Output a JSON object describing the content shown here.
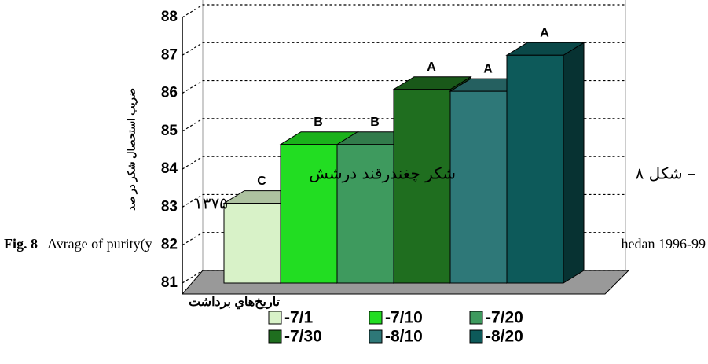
{
  "chart_data": {
    "type": "bar",
    "categories": [
      "-7/1",
      "-7/10",
      "-7/20",
      "-7/30",
      "-8/10",
      "-8/20"
    ],
    "values": [
      83.1,
      84.65,
      84.65,
      86.1,
      86.05,
      87.0
    ],
    "annotations": [
      "C",
      "B",
      "B",
      "A",
      "A",
      "A"
    ],
    "colors": [
      "#d8f2c8",
      "#22dd22",
      "#3e9a5e",
      "#1f6e1f",
      "#2e7878",
      "#0d5a5a"
    ],
    "ylim": [
      81,
      88
    ],
    "yticks": [
      81,
      82,
      83,
      84,
      85,
      86,
      87,
      88
    ],
    "grid": true,
    "y_label": "ضريب استحصال شکر در صد",
    "x_label": "تاريخ‌هاي برداشت",
    "legend": "bottom"
  },
  "caption": {
    "persian_line1": "شکل ٨ –",
    "persian_line1b": "شکر چغندرقند درشش",
    "persian_line2": "۱۳۷۵",
    "fig_label": "Fig. 8",
    "fig_text": "Avrage of purity(y",
    "fig_end": "hedan 1996-99"
  }
}
